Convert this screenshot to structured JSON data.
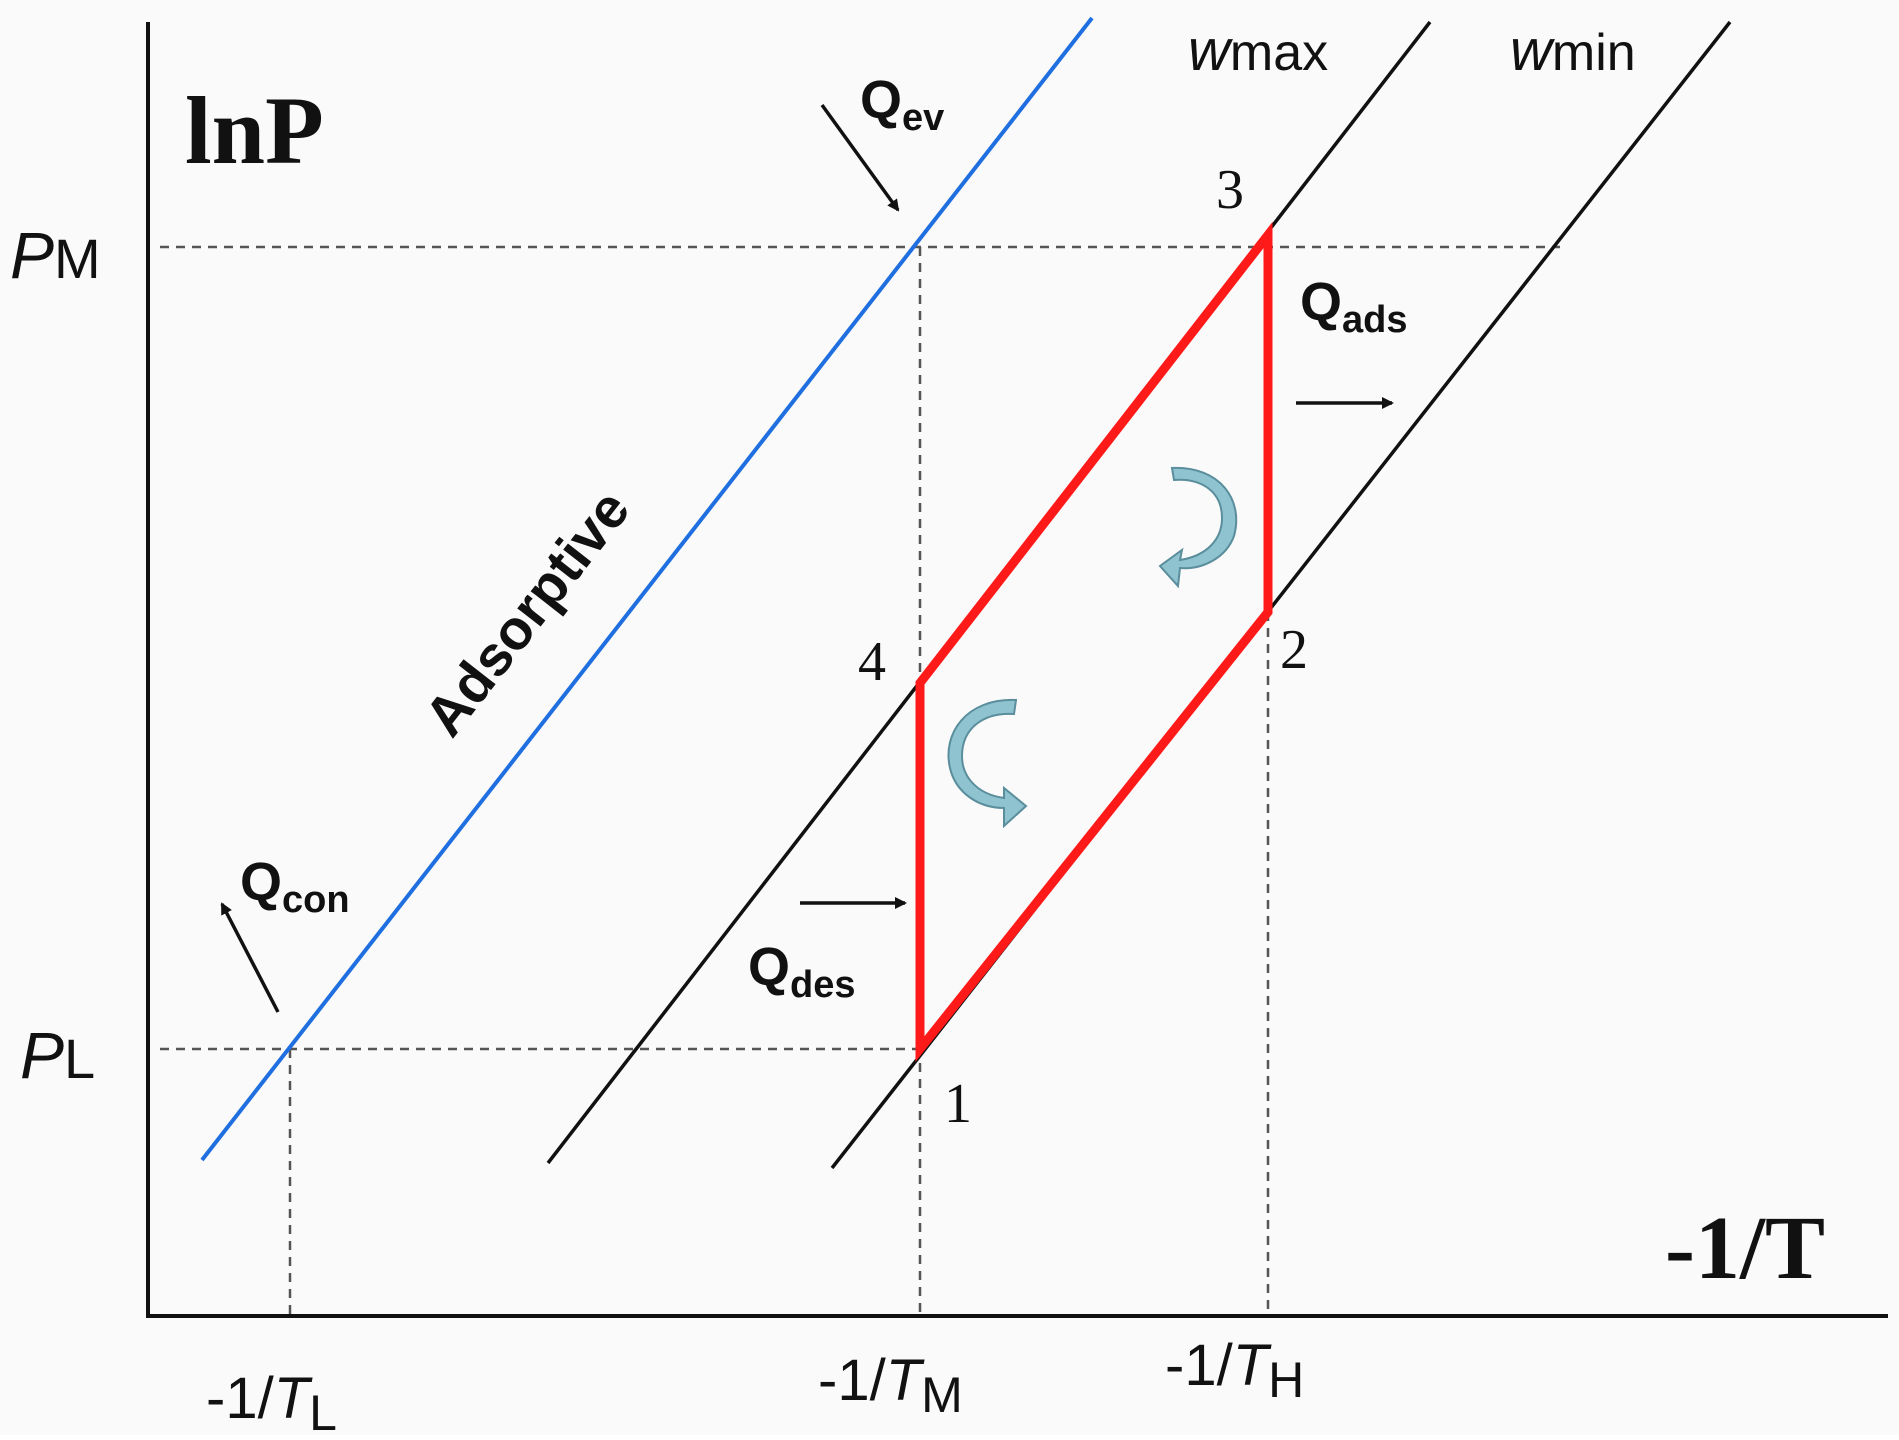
{
  "diagram": {
    "y_axis_label": "lnP",
    "x_axis_label": "-1/T",
    "pressure_levels": [
      {
        "id": "PM",
        "main": "P",
        "sub": "M"
      },
      {
        "id": "PL",
        "main": "P",
        "sub": "L"
      }
    ],
    "temperature_levels": [
      {
        "id": "TL",
        "prefix": "-1/",
        "main": "T",
        "sub": "L"
      },
      {
        "id": "TM",
        "prefix": "-1/",
        "main": "T",
        "sub": "M"
      },
      {
        "id": "TH",
        "prefix": "-1/",
        "main": "T",
        "sub": "H"
      }
    ],
    "isosteres": [
      {
        "id": "adsorptive",
        "label": "Adsorptive",
        "color": "#1f6fe0"
      },
      {
        "id": "wmax",
        "label_main": "w",
        "label_sub": "max",
        "color": "#111111"
      },
      {
        "id": "wmin",
        "label_main": "w",
        "label_sub": "min",
        "color": "#111111"
      }
    ],
    "cycle": {
      "color": "#ff1a1a",
      "points": [
        "1",
        "2",
        "3",
        "4"
      ]
    },
    "heat_flows": [
      {
        "id": "Qev",
        "main": "Q",
        "sub": "ev"
      },
      {
        "id": "Qads",
        "main": "Q",
        "sub": "ads"
      },
      {
        "id": "Qcon",
        "main": "Q",
        "sub": "con"
      },
      {
        "id": "Qdes",
        "main": "Q",
        "sub": "des"
      }
    ],
    "rotation_arrow_color": "#8fc3cf"
  }
}
